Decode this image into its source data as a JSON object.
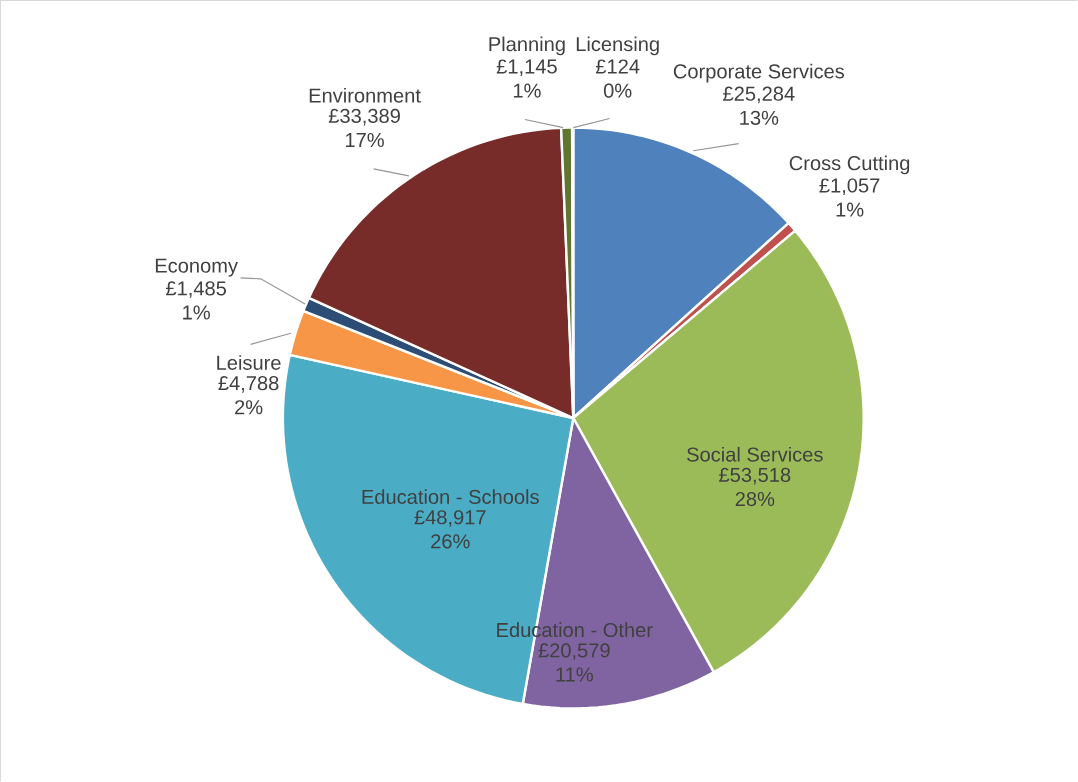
{
  "chart_data": {
    "type": "pie",
    "categories": [
      "Corporate Services",
      "Cross Cutting",
      "Social Services",
      "Education - Other",
      "Education - Schools",
      "Leisure",
      "Economy",
      "Environment",
      "Planning",
      "Licensing"
    ],
    "values": [
      25284,
      1057,
      53518,
      20579,
      48917,
      4788,
      1485,
      33389,
      1145,
      124
    ],
    "value_labels": [
      "£25,284 13%",
      "£1,057 1%",
      "£53,518 28%",
      "£20,579 11%",
      "£48,917 26%",
      "£4,788 2%",
      "£1,485 1%",
      "£33,389 17%",
      "£1,145 1%",
      "£124 0%"
    ],
    "colors": [
      "#4f81bd",
      "#c0504d",
      "#9bbb59",
      "#8064a2",
      "#4bacc6",
      "#f79646",
      "#2c4d75",
      "#772c2a",
      "#5f7530",
      "#4d3b62"
    ]
  }
}
